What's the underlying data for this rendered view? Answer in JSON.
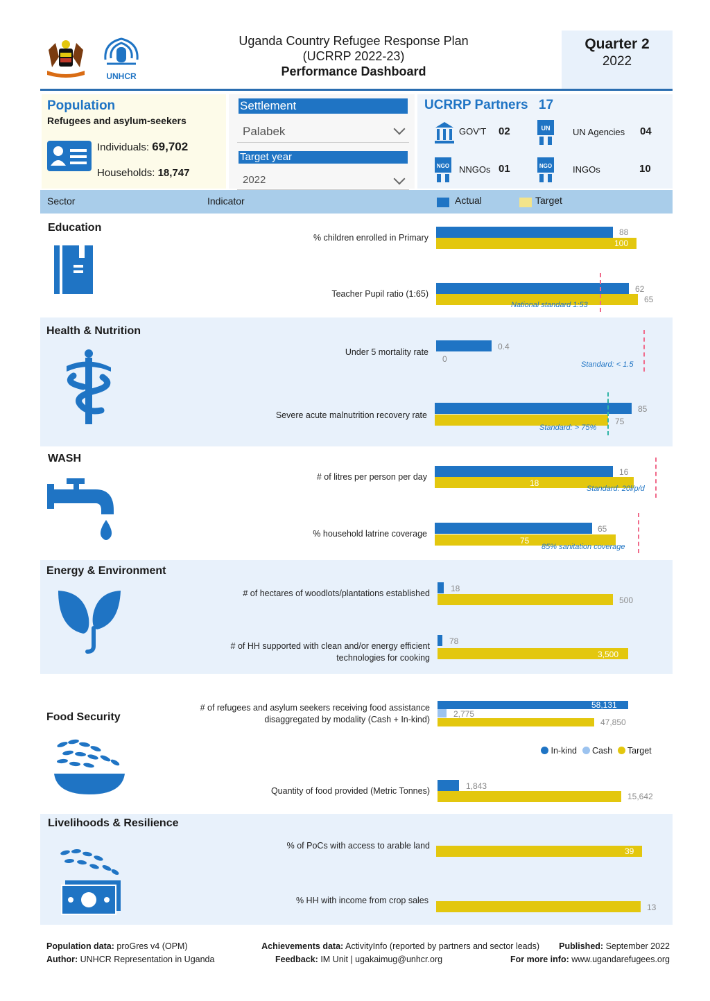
{
  "header": {
    "title_line1": "Uganda Country Refugee Response Plan",
    "title_line2": "(UCRRP 2022-23)",
    "title_line3": "Performance Dashboard",
    "unhcr_logo_text": "UNHCR",
    "quarter": "Quarter 2",
    "year": "2022"
  },
  "population": {
    "title": "Population",
    "subtitle": "Refugees and asylum-seekers",
    "individuals_label": "Individuals:",
    "individuals_value": "69,702",
    "households_label": "Households:",
    "households_value": "18,747"
  },
  "filters": {
    "settlement_label": "Settlement",
    "settlement_value": "Palabek",
    "target_year_label": "Target year",
    "target_year_value": "2022"
  },
  "partners": {
    "title": "UCRRP Partners",
    "total": "17",
    "govt_label": "GOV'T",
    "govt_value": "02",
    "un_label": "UN Agencies",
    "un_value": "04",
    "nngo_label": "NNGOs",
    "nngo_value": "01",
    "ingo_label": "INGOs",
    "ingo_value": "10"
  },
  "table_header": {
    "sector": "Sector",
    "indicator": "Indicator",
    "actual": "Actual",
    "target": "Target"
  },
  "colors": {
    "actual": "#1f74c4",
    "target": "#e3c70e",
    "cash": "#9cc3ef",
    "band": "#e8f1fb",
    "standard_line": "#f06a8a"
  },
  "sectors": {
    "education": {
      "title": "Education",
      "ind1": {
        "label": "% children enrolled in Primary",
        "actual": "88",
        "target": "100"
      },
      "ind2": {
        "label": "Teacher Pupil ratio (1:65)",
        "actual": "62",
        "target": "65",
        "standard": "National standard 1:53"
      }
    },
    "health": {
      "title": "Health & Nutrition",
      "ind1": {
        "label": "Under 5 mortality rate",
        "actual": "0.4",
        "target": "0",
        "standard": "Standard: < 1.5"
      },
      "ind2": {
        "label": "Severe acute malnutrition recovery rate",
        "actual": "85",
        "target": "75",
        "standard": "Standard: > 75%"
      }
    },
    "wash": {
      "title": "WASH",
      "ind1": {
        "label": "# of litres per person per day",
        "actual": "16",
        "target": "18",
        "standard": "Standard: 20l/p/d"
      },
      "ind2": {
        "label": "% household latrine coverage",
        "actual": "65",
        "target": "75",
        "standard": "85% sanitation coverage"
      }
    },
    "energy": {
      "title": "Energy & Environment",
      "ind1": {
        "label": "# of hectares of woodlots/plantations established",
        "actual": "18",
        "target": "500"
      },
      "ind2": {
        "label_line1": "# of HH supported with clean and/or energy efficient",
        "label_line2": "technologies for cooking",
        "actual": "78",
        "target": "3,500"
      }
    },
    "food": {
      "title": "Food Security",
      "ind1": {
        "label_line1": "# of refugees and asylum seekers receiving food assistance",
        "label_line2": "disaggregated by modality (Cash + In-kind)",
        "inkind": "58,131",
        "cash": "2,775",
        "target": "47,850"
      },
      "legend_inkind": "In-kind",
      "legend_cash": "Cash",
      "legend_target": "Target",
      "ind2": {
        "label": "Quantity of food provided (Metric Tonnes)",
        "actual": "1,843",
        "target": "15,642"
      }
    },
    "livelihoods": {
      "title": "Livelihoods & Resilience",
      "ind1": {
        "label": "% of PoCs with access to arable land",
        "target": "39"
      },
      "ind2": {
        "label": "% HH with income from crop sales",
        "target": "13"
      }
    }
  },
  "footer": {
    "pop_label": "Population data:",
    "pop_value": "proGres v4 (OPM)",
    "author_label": "Author:",
    "author_value": "UNHCR Representation in Uganda",
    "ach_label": "Achievements data:",
    "ach_value": "ActivityInfo (reported by partners and sector leads)",
    "feedback_label": "Feedback:",
    "feedback_value": "IM Unit | ugakaimug@unhcr.org",
    "published_label": "Published:",
    "published_value": "September 2022",
    "info_label": "For more info:",
    "info_value": "www.ugandarefugees.org"
  }
}
